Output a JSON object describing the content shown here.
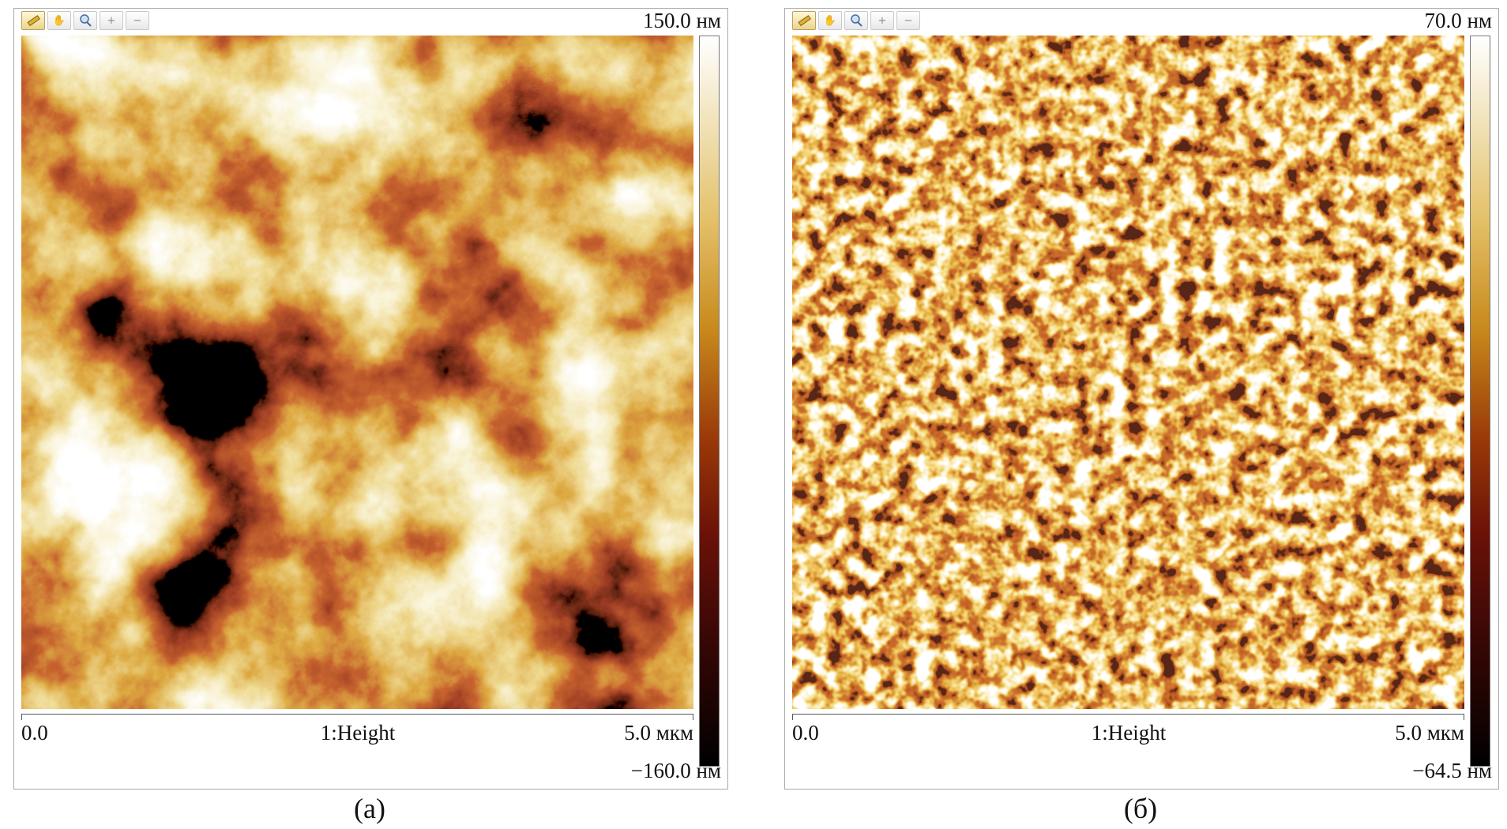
{
  "panels": [
    {
      "toolbar": {
        "tools": [
          "ruler-icon",
          "pan-hand-icon",
          "zoom-magnifier-icon",
          "zoom-in-icon",
          "zoom-out-icon"
        ]
      },
      "colorbar": {
        "max_label": "150.0 нм",
        "min_label": "−160.0 нм"
      },
      "axis": {
        "start_label": "0.0",
        "channel_label": "1:Height",
        "end_label": "5.0 мкм"
      },
      "caption": "(а)",
      "colors": {
        "high": "#ffffff",
        "mid": "#c88a1c",
        "low": "#000000"
      }
    },
    {
      "toolbar": {
        "tools": [
          "ruler-icon",
          "pan-hand-icon",
          "zoom-magnifier-icon",
          "zoom-in-icon",
          "zoom-out-icon"
        ]
      },
      "colorbar": {
        "max_label": "70.0 нм",
        "min_label": "−64.5 нм"
      },
      "axis": {
        "start_label": "0.0",
        "channel_label": "1:Height",
        "end_label": "5.0 мкм"
      },
      "caption": "(б)",
      "colors": {
        "high": "#ffffff",
        "mid": "#d8901c",
        "low": "#000000"
      }
    }
  ]
}
